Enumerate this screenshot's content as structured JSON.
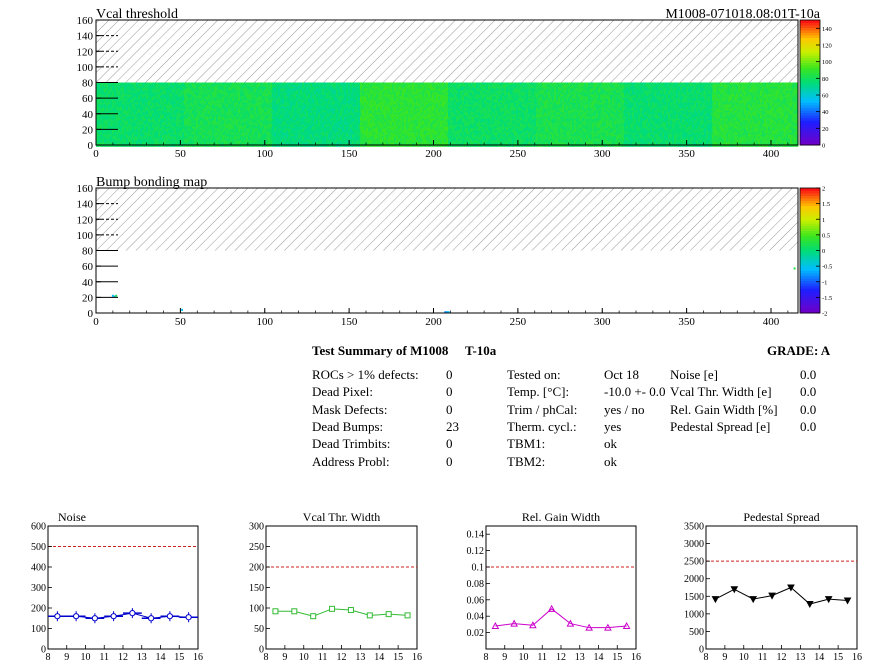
{
  "header": {
    "map1_title": "Vcal threshold",
    "map2_title": "Bump bonding map",
    "module_id": "M1008-071018.08:01T-10a"
  },
  "maps": {
    "x_ticks": [
      0,
      50,
      100,
      150,
      200,
      250,
      300,
      350,
      400
    ],
    "y_ticks": [
      0,
      20,
      40,
      60,
      80,
      100,
      120,
      140,
      160
    ],
    "x_range": [
      0,
      416
    ],
    "y_range": [
      0,
      160
    ],
    "data_y_max": 80,
    "roc_boundaries": [
      0,
      52,
      104,
      156,
      208,
      260,
      312,
      364,
      416
    ],
    "vcal_scale": {
      "min": 0,
      "max": 150,
      "ticks": [
        0,
        20,
        40,
        60,
        80,
        100,
        120,
        140
      ]
    },
    "bump_scale": {
      "min": -2,
      "max": 2,
      "ticks": [
        -2,
        -1.5,
        -1,
        -0.5,
        0,
        0.5,
        1,
        1.5,
        2
      ]
    },
    "vcal_roc_levels": [
      78,
      82,
      75,
      88,
      79,
      83,
      77,
      86
    ],
    "bump_points": [
      {
        "x": 10,
        "y": 22,
        "v": -0.6
      },
      {
        "x": 11,
        "y": 21,
        "v": -0.4
      },
      {
        "x": 12,
        "y": 22,
        "v": 0.2
      },
      {
        "x": 51,
        "y": 4,
        "v": -0.5
      },
      {
        "x": 207,
        "y": 1,
        "v": -0.8
      },
      {
        "x": 208,
        "y": 1,
        "v": -0.7
      },
      {
        "x": 209,
        "y": 1,
        "v": -0.6
      },
      {
        "x": 414,
        "y": 57,
        "v": 0.3
      }
    ]
  },
  "summary": {
    "title": "Test Summary of M1008",
    "temp_label": "T-10a",
    "grade": "GRADE:  A",
    "col1": [
      {
        "label": "ROCs > 1% defects:",
        "value": "0"
      },
      {
        "label": "Dead Pixel:",
        "value": "0"
      },
      {
        "label": "Mask Defects:",
        "value": "0"
      },
      {
        "label": "Dead Bumps:",
        "value": "23"
      },
      {
        "label": "Dead Trimbits:",
        "value": "0"
      },
      {
        "label": "Address Probl:",
        "value": "0"
      }
    ],
    "col2": [
      {
        "label": "Tested on:",
        "value": "Oct 18"
      },
      {
        "label": "Temp. [°C]:",
        "value": "-10.0 +- 0.0"
      },
      {
        "label": "Trim / phCal:",
        "value": "yes / no"
      },
      {
        "label": "Therm. cycl.:",
        "value": "yes"
      },
      {
        "label": "TBM1:",
        "value": "ok"
      },
      {
        "label": "TBM2:",
        "value": "ok"
      }
    ],
    "col3": [
      {
        "label": "Noise [e]",
        "value": "0.0"
      },
      {
        "label": "Vcal Thr. Width [e]",
        "value": "0.0"
      },
      {
        "label": "Rel. Gain Width [%]",
        "value": "0.0"
      },
      {
        "label": "Pedestal Spread [e]",
        "value": "0.0"
      }
    ]
  },
  "chart_data": [
    {
      "type": "line",
      "title": "Noise",
      "x": [
        8.5,
        9.5,
        10.5,
        11.5,
        12.5,
        13.5,
        14.5,
        15.5
      ],
      "y": [
        160,
        160,
        150,
        160,
        175,
        150,
        160,
        155
      ],
      "xlim": [
        8,
        16
      ],
      "ylim": [
        0,
        600
      ],
      "x_ticks": [
        8,
        9,
        10,
        11,
        12,
        13,
        14,
        15,
        16
      ],
      "y_ticks": [
        0,
        100,
        200,
        300,
        400,
        500,
        600
      ],
      "y_tick_labels": [
        "0",
        "100",
        "200",
        "300",
        "400",
        "500",
        "600"
      ],
      "threshold": 500,
      "color": "#0000cc",
      "marker": "circle"
    },
    {
      "type": "line",
      "title": "Vcal Thr. Width",
      "x": [
        8.5,
        9.5,
        10.5,
        11.5,
        12.5,
        13.5,
        14.5,
        15.5
      ],
      "y": [
        92,
        92,
        80,
        98,
        95,
        82,
        85,
        82
      ],
      "xlim": [
        8,
        16
      ],
      "ylim": [
        0,
        300
      ],
      "x_ticks": [
        8,
        9,
        10,
        11,
        12,
        13,
        14,
        15,
        16
      ],
      "y_ticks": [
        0,
        50,
        100,
        150,
        200,
        250,
        300
      ],
      "y_tick_labels": [
        "0",
        "50",
        "100",
        "150",
        "200",
        "250",
        "300"
      ],
      "threshold": 200,
      "color": "#33bb33",
      "marker": "square"
    },
    {
      "type": "line",
      "title": "Rel. Gain Width",
      "x": [
        8.5,
        9.5,
        10.5,
        11.5,
        12.5,
        13.5,
        14.5,
        15.5
      ],
      "y": [
        0.028,
        0.031,
        0.029,
        0.049,
        0.031,
        0.026,
        0.026,
        0.028
      ],
      "xlim": [
        8,
        16
      ],
      "ylim": [
        0,
        0.15
      ],
      "x_ticks": [
        8,
        9,
        10,
        11,
        12,
        13,
        14,
        15,
        16
      ],
      "y_ticks": [
        0.02,
        0.04,
        0.06,
        0.08,
        0.1,
        0.12,
        0.14
      ],
      "y_tick_labels": [
        "0.02",
        "0.04",
        "0.06",
        "0.08",
        "0.1",
        "0.12",
        "0.14"
      ],
      "threshold": 0.1,
      "color": "#cc00cc",
      "marker": "triangle"
    },
    {
      "type": "line",
      "title": "Pedestal Spread",
      "x": [
        8.5,
        9.5,
        10.5,
        11.5,
        12.5,
        13.5,
        14.5,
        15.5
      ],
      "y": [
        1420,
        1700,
        1420,
        1520,
        1750,
        1280,
        1420,
        1380
      ],
      "xlim": [
        8,
        16
      ],
      "ylim": [
        0,
        3500
      ],
      "x_ticks": [
        8,
        9,
        10,
        11,
        12,
        13,
        14,
        15,
        16
      ],
      "y_ticks": [
        0,
        500,
        1000,
        1500,
        2000,
        2500,
        3000,
        3500
      ],
      "y_tick_labels": [
        "0",
        "500",
        "1000",
        "1500",
        "2000",
        "2500",
        "3000",
        "3500"
      ],
      "threshold": 2500,
      "color": "#000000",
      "marker": "triangle-down"
    }
  ]
}
